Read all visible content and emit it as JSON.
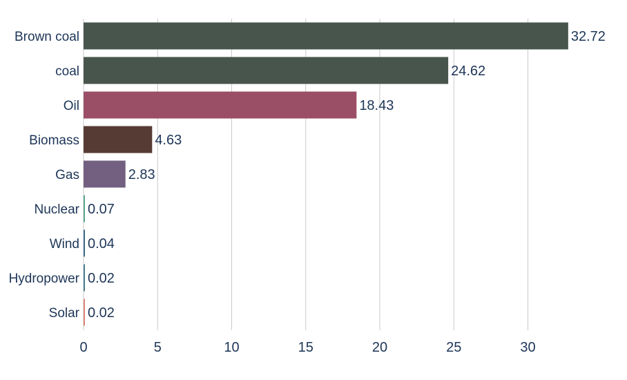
{
  "chart_data": {
    "type": "bar",
    "orientation": "horizontal",
    "categories": [
      "Brown coal",
      "coal",
      "Oil",
      "Biomass",
      "Gas",
      "Nuclear",
      "Wind",
      "Hydropower",
      "Solar"
    ],
    "values": [
      32.72,
      24.62,
      18.43,
      4.63,
      2.83,
      0.07,
      0.04,
      0.02,
      0.02
    ],
    "value_labels": [
      "32.72",
      "24.62",
      "18.43",
      "4.63",
      "2.83",
      "0.07",
      "0.04",
      "0.02",
      "0.02"
    ],
    "colors": [
      "#48554d",
      "#48554d",
      "#9b4f66",
      "#563b34",
      "#735f7f",
      "#5aa48e",
      "#3f6a8a",
      "#4a7e8a",
      "#d98478"
    ],
    "xlim": [
      0,
      33.5
    ],
    "xticks": [
      0,
      5,
      10,
      15,
      20,
      25,
      30
    ],
    "xtick_labels": [
      "0",
      "5",
      "10",
      "15",
      "20",
      "25",
      "30"
    ],
    "grid": "vertical",
    "title": "",
    "xlabel": "",
    "ylabel": ""
  }
}
